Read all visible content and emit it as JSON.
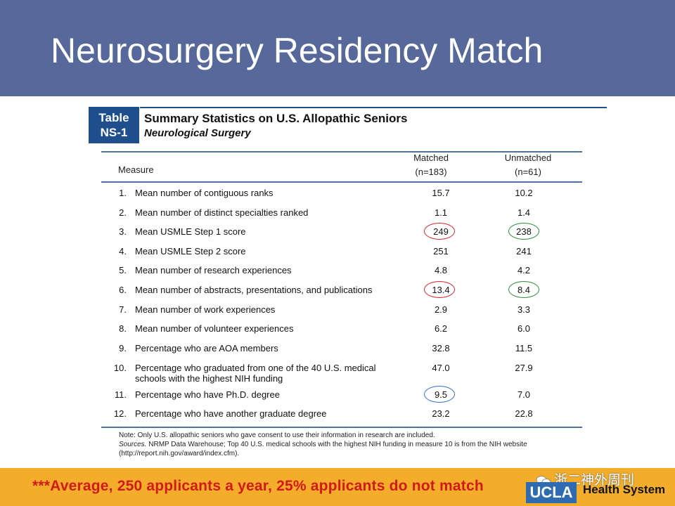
{
  "slide": {
    "title": "Neurosurgery Residency Match"
  },
  "table": {
    "badge_line1": "Table",
    "badge_line2": "NS-1",
    "title": "Summary Statistics on U.S. Allopathic Seniors",
    "subtitle": "Neurological Surgery",
    "header": {
      "measure": "Measure",
      "matched": "Matched",
      "matched_n": "(n=183)",
      "unmatched": "Unmatched",
      "unmatched_n": "(n=61)"
    },
    "rows": [
      {
        "num": "1.",
        "label": "Mean number of contiguous ranks",
        "matched": "15.7",
        "unmatched": "10.2"
      },
      {
        "num": "2.",
        "label": "Mean number of distinct specialties ranked",
        "matched": "1.1",
        "unmatched": "1.4"
      },
      {
        "num": "3.",
        "label": "Mean USMLE Step 1 score",
        "matched": "249",
        "unmatched": "238"
      },
      {
        "num": "4.",
        "label": "Mean USMLE Step 2 score",
        "matched": "251",
        "unmatched": "241"
      },
      {
        "num": "5.",
        "label": "Mean number of research experiences",
        "matched": "4.8",
        "unmatched": "4.2"
      },
      {
        "num": "6.",
        "label": "Mean number of abstracts, presentations, and publications",
        "matched": "13.4",
        "unmatched": "8.4"
      },
      {
        "num": "7.",
        "label": "Mean number of work experiences",
        "matched": "2.9",
        "unmatched": "3.3"
      },
      {
        "num": "8.",
        "label": "Mean number of volunteer experiences",
        "matched": "6.2",
        "unmatched": "6.0"
      },
      {
        "num": "9.",
        "label": "Percentage who are AOA members",
        "matched": "32.8",
        "unmatched": "11.5"
      },
      {
        "num": "10.",
        "label": "Percentage who graduated from one of the 40 U.S. medical schools with the highest NIH funding",
        "matched": "47.0",
        "unmatched": "27.9"
      },
      {
        "num": "11.",
        "label": "Percentage who have Ph.D. degree",
        "matched": "9.5",
        "unmatched": "7.0"
      },
      {
        "num": "12.",
        "label": "Percentage who have another graduate degree",
        "matched": "23.2",
        "unmatched": "22.8"
      }
    ],
    "note": "Note: Only U.S. allopathic seniors who gave consent to use their information in research are included.",
    "sources_label": "Sources.",
    "sources": " NRMP Data Warehouse; Top 40 U.S. medical schools with the highest NIH funding in measure 10 is from the NIH website",
    "sources_url": "(http://report.nih.gov/award/index.cfm)."
  },
  "highlights": {
    "red": "#d9262c",
    "green": "#2e8b3a",
    "blue": "#3a6fd8"
  },
  "footer": {
    "callout": "***Average, 250 applicants a year, 25% applicants do not match",
    "wechat_label": "浙二神外周刊",
    "ucla": "UCLA",
    "health_system": "Health System"
  },
  "colors": {
    "header_band": "#56699a",
    "footer_band": "#f3ad2a",
    "badge": "#1e4e8c",
    "callout_text": "#d11a1a"
  }
}
